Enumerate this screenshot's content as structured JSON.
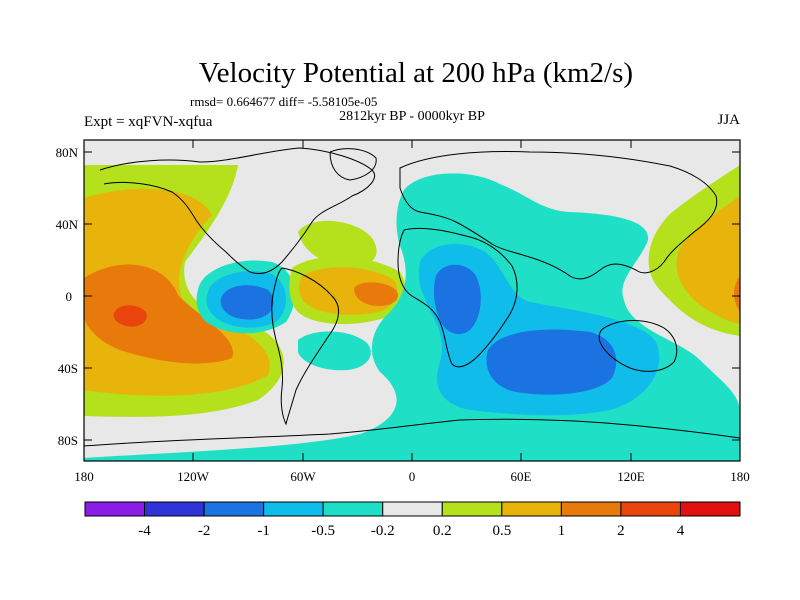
{
  "title": "Velocity Potential at 200 hPa (km2/s)",
  "stats_line": "rmsd= 0.664677 diff= -5.58105e-05",
  "left_label": "Expt = xqFVN-xqfua",
  "center_label": "2812kyr BP - 0000kyr BP",
  "right_label": "JJA",
  "axes": {
    "lat_ticks": [
      "80N",
      "40N",
      "0",
      "40S",
      "80S"
    ],
    "lon_ticks": [
      "180",
      "120W",
      "60W",
      "0",
      "60E",
      "120E",
      "180"
    ]
  },
  "colorbar": {
    "colors": [
      "#8a1ee6",
      "#2e34d8",
      "#1a73e0",
      "#10bcea",
      "#1fe0c6",
      "#e8e8e8",
      "#b4e01c",
      "#e8b40c",
      "#e87a0c",
      "#e8440c",
      "#e01010"
    ],
    "labels": [
      "-4",
      "-2",
      "-1",
      "-0.5",
      "-0.2",
      "0.2",
      "0.5",
      "1",
      "2",
      "4"
    ]
  },
  "colors": {
    "land_outline": "#000000",
    "background": "#e8e8e8"
  }
}
